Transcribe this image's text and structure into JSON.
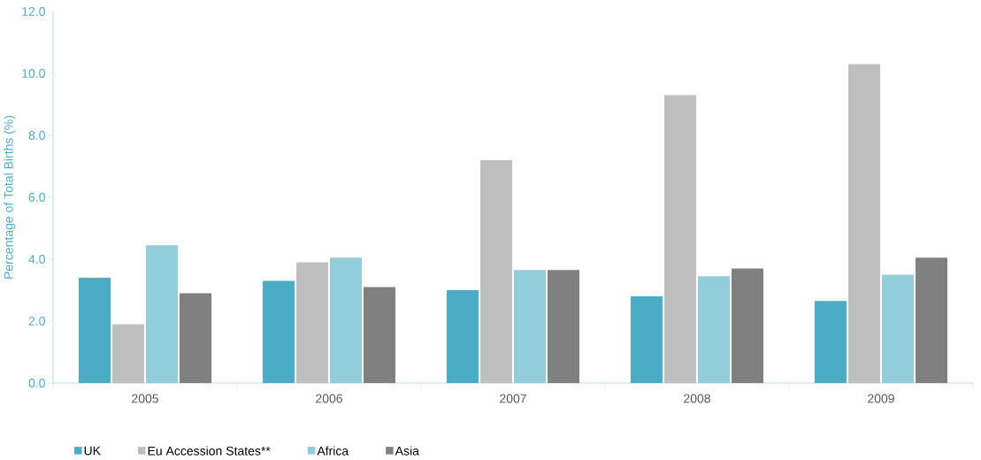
{
  "chart_data": {
    "type": "bar",
    "ylabel": "Percentage of Total Births (%)",
    "categories": [
      "2005",
      "2006",
      "2007",
      "2008",
      "2009"
    ],
    "series": [
      {
        "name": "UK",
        "color": "#4bacc6",
        "values": [
          3.4,
          3.3,
          3.0,
          2.8,
          2.65
        ]
      },
      {
        "name": "Eu Accession States**",
        "color": "#bfbfbf",
        "values": [
          1.9,
          3.9,
          7.2,
          9.3,
          10.3
        ]
      },
      {
        "name": "Africa",
        "color": "#92cddc",
        "values": [
          4.45,
          4.05,
          3.65,
          3.45,
          3.5
        ]
      },
      {
        "name": "Asia",
        "color": "#808080",
        "values": [
          2.9,
          3.1,
          3.65,
          3.7,
          4.05
        ]
      }
    ],
    "ylim": [
      0,
      12
    ],
    "yticks": [
      {
        "value": 0,
        "label": "0.0"
      },
      {
        "value": 2,
        "label": "2.0"
      },
      {
        "value": 4,
        "label": "4.0"
      },
      {
        "value": 6,
        "label": "6.0"
      },
      {
        "value": 8,
        "label": "8.0"
      },
      {
        "value": 10,
        "label": "10.0"
      },
      {
        "value": 12,
        "label": "12.0"
      }
    ],
    "grid": false,
    "legend": "bottom"
  }
}
